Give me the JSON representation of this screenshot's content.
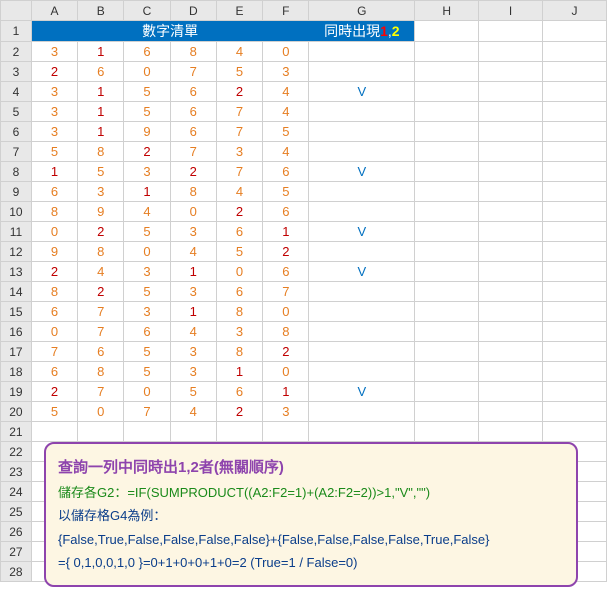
{
  "columns": [
    "",
    "A",
    "B",
    "C",
    "D",
    "E",
    "F",
    "G",
    "H",
    "I",
    "J"
  ],
  "header": {
    "title": "數字清單",
    "right_prefix": "同時出現",
    "right_one": "1",
    "right_comma": ",",
    "right_two": "2"
  },
  "rows": [
    {
      "n": "2",
      "vals": [
        "3",
        "1",
        "6",
        "8",
        "4",
        "0"
      ],
      "g": ""
    },
    {
      "n": "3",
      "vals": [
        "2",
        "6",
        "0",
        "7",
        "5",
        "3"
      ],
      "g": ""
    },
    {
      "n": "4",
      "vals": [
        "3",
        "1",
        "5",
        "6",
        "2",
        "4"
      ],
      "g": "V"
    },
    {
      "n": "5",
      "vals": [
        "3",
        "1",
        "5",
        "6",
        "7",
        "4"
      ],
      "g": ""
    },
    {
      "n": "6",
      "vals": [
        "3",
        "1",
        "9",
        "6",
        "7",
        "5"
      ],
      "g": ""
    },
    {
      "n": "7",
      "vals": [
        "5",
        "8",
        "2",
        "7",
        "3",
        "4"
      ],
      "g": ""
    },
    {
      "n": "8",
      "vals": [
        "1",
        "5",
        "3",
        "2",
        "7",
        "6"
      ],
      "g": "V"
    },
    {
      "n": "9",
      "vals": [
        "6",
        "3",
        "1",
        "8",
        "4",
        "5"
      ],
      "g": ""
    },
    {
      "n": "10",
      "vals": [
        "8",
        "9",
        "4",
        "0",
        "2",
        "6"
      ],
      "g": ""
    },
    {
      "n": "11",
      "vals": [
        "0",
        "2",
        "5",
        "3",
        "6",
        "1"
      ],
      "g": "V"
    },
    {
      "n": "12",
      "vals": [
        "9",
        "8",
        "0",
        "4",
        "5",
        "2"
      ],
      "g": ""
    },
    {
      "n": "13",
      "vals": [
        "2",
        "4",
        "3",
        "1",
        "0",
        "6"
      ],
      "g": "V"
    },
    {
      "n": "14",
      "vals": [
        "8",
        "2",
        "5",
        "3",
        "6",
        "7"
      ],
      "g": ""
    },
    {
      "n": "15",
      "vals": [
        "6",
        "7",
        "3",
        "1",
        "8",
        "0"
      ],
      "g": ""
    },
    {
      "n": "16",
      "vals": [
        "0",
        "7",
        "6",
        "4",
        "3",
        "8"
      ],
      "g": ""
    },
    {
      "n": "17",
      "vals": [
        "7",
        "6",
        "5",
        "3",
        "8",
        "2"
      ],
      "g": ""
    },
    {
      "n": "18",
      "vals": [
        "6",
        "8",
        "5",
        "3",
        "1",
        "0"
      ],
      "g": ""
    },
    {
      "n": "19",
      "vals": [
        "2",
        "7",
        "0",
        "5",
        "6",
        "1"
      ],
      "g": "V"
    },
    {
      "n": "20",
      "vals": [
        "5",
        "0",
        "7",
        "4",
        "2",
        "3"
      ],
      "g": ""
    }
  ],
  "empty_rows": [
    "21",
    "22",
    "23",
    "24",
    "25",
    "26",
    "27",
    "28"
  ],
  "info": {
    "title": "查詢一列中同時出1,2者(無關順序)",
    "formula": "儲存各G2：=IF(SUMPRODUCT((A2:F2=1)+(A2:F2=2))>1,\"V\",\"\")",
    "sub1": "以儲存格G4為例：",
    "sub2": "{False,True,False,False,False,False}+{False,False,False,False,True,False}",
    "sub3": "={ 0,1,0,0,1,0 }=0+1+0+0+1+0=2 (True=1 / False=0)"
  },
  "colors": {
    "red": "#c00000",
    "orange": "#e67e22"
  }
}
